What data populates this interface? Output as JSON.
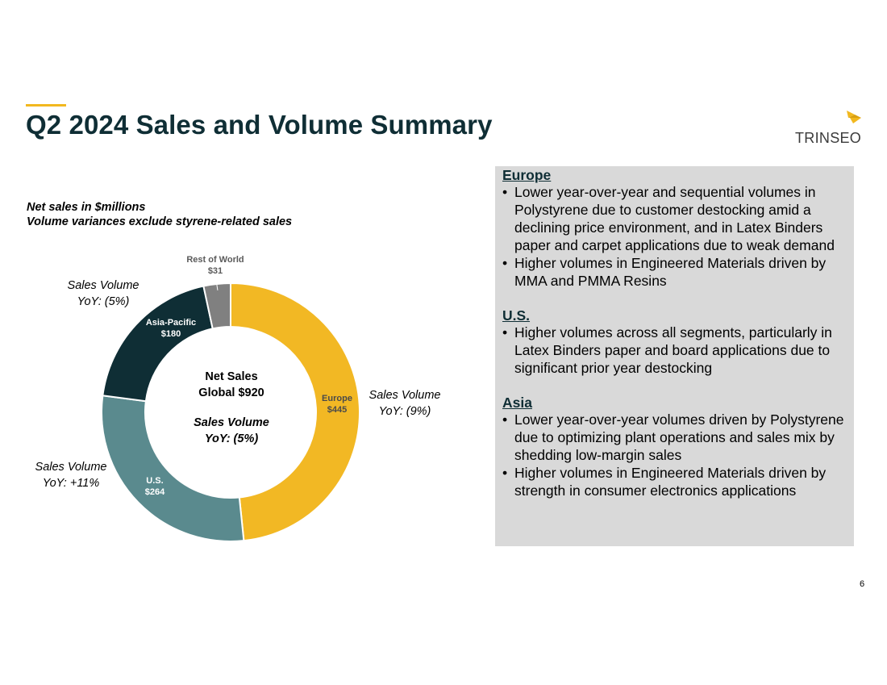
{
  "page": {
    "title": "Q2 2024 Sales and Volume Summary",
    "logo_text": "TRINSEO",
    "page_number": "6",
    "subtitle_lines": [
      "Net sales in $millions",
      "Volume variances exclude styrene-related sales"
    ]
  },
  "chart_data": {
    "type": "pie",
    "variant": "donut",
    "units": "$ millions",
    "slices": [
      {
        "name": "Europe",
        "value": 445,
        "display": "$445",
        "color": "#f2b824",
        "label_color": "#4a4a4a",
        "volume_note": [
          "Sales Volume",
          "YoY: (9%)"
        ]
      },
      {
        "name": "U.S.",
        "value": 264,
        "display": "$264",
        "color": "#5a8a8e",
        "label_color": "#ffffff",
        "volume_note": [
          "Sales Volume",
          "YoY: +11%"
        ]
      },
      {
        "name": "Asia-Pacific",
        "value": 180,
        "display": "$180",
        "color": "#0f2e35",
        "label_color": "#ffffff",
        "volume_note": [
          "Sales Volume",
          "YoY: (5%)"
        ]
      },
      {
        "name": "Rest of World",
        "value": 31,
        "display": "$31",
        "color": "#808080",
        "label_color": "#5a5a5a",
        "volume_note": []
      }
    ],
    "center": {
      "lines": [
        "Net Sales",
        "Global $920"
      ],
      "italic_lines": [
        "Sales Volume",
        "YoY: (5%)"
      ]
    },
    "total": 920
  },
  "panel": {
    "regions": [
      {
        "title": "Europe",
        "bullets": [
          "Lower year-over-year and sequential volumes in Polystyrene due to customer destocking amid a declining price environment, and in Latex Binders paper and carpet applications due to weak demand",
          "Higher volumes in Engineered Materials driven by MMA and PMMA Resins"
        ]
      },
      {
        "title": "U.S.",
        "bullets": [
          "Higher volumes across all segments, particularly in Latex Binders paper and board applications due to significant prior year destocking"
        ]
      },
      {
        "title": "Asia",
        "bullets": [
          "Lower year-over-year volumes driven by Polystyrene due to optimizing plant operations and sales mix by shedding low-margin sales",
          "Higher volumes in Engineered Materials driven by strength in consumer electronics applications"
        ]
      }
    ]
  },
  "colors": {
    "title": "#0f2e35",
    "accent": "#f2b81f",
    "panel_bg": "#d9d9d9"
  }
}
